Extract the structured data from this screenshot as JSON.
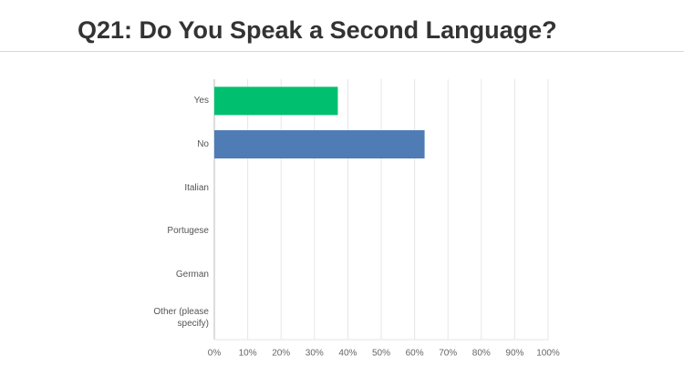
{
  "chart_data": {
    "type": "bar",
    "orientation": "horizontal",
    "title": "Q21: Do You Speak a Second Language?",
    "categories": [
      "Yes",
      "No",
      "Italian",
      "Portugese",
      "German",
      "Other (please specify)"
    ],
    "values": [
      37,
      63,
      0,
      0,
      0,
      0
    ],
    "colors": [
      "#00bf6f",
      "#507cb6",
      "#507cb6",
      "#507cb6",
      "#507cb6",
      "#507cb6"
    ],
    "xlim": [
      0,
      100
    ],
    "xticks": [
      {
        "value": 0,
        "label": "0%"
      },
      {
        "value": 10,
        "label": "10%"
      },
      {
        "value": 20,
        "label": "20%"
      },
      {
        "value": 30,
        "label": "30%"
      },
      {
        "value": 40,
        "label": "40%"
      },
      {
        "value": 50,
        "label": "50%"
      },
      {
        "value": 60,
        "label": "60%"
      },
      {
        "value": 70,
        "label": "70%"
      },
      {
        "value": 80,
        "label": "80%"
      },
      {
        "value": 90,
        "label": "90%"
      },
      {
        "value": 100,
        "label": "100%"
      }
    ],
    "grid": true
  }
}
